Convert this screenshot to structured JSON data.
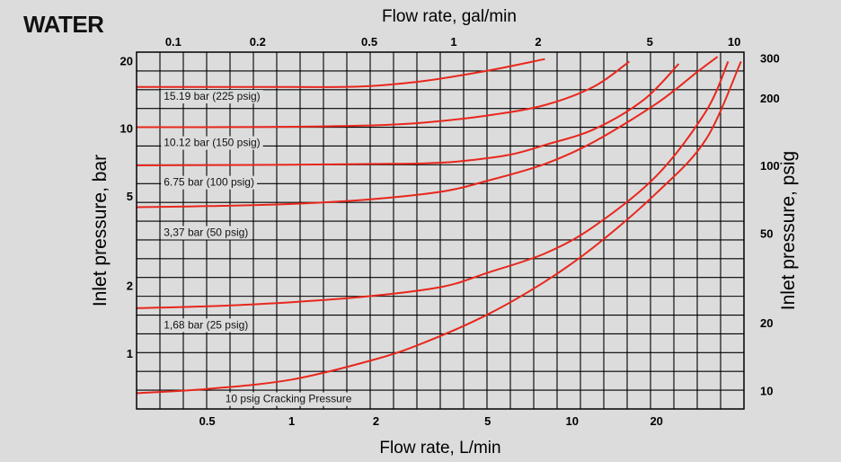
{
  "page_title": "WATER",
  "colors": {
    "background": "#dcdcdc",
    "grid": "#000000",
    "curve": "#e8271d"
  },
  "chart_data": {
    "type": "line",
    "title": "WATER",
    "xlabel": "Flow rate, L/min",
    "x2label": "Flow rate, gal/min",
    "ylabel": "Inlet pressure, bar",
    "y2label": "Inlet pressure, psig",
    "x_scale": "log",
    "y_scale": "log",
    "xlim": [
      0.28,
      41
    ],
    "ylim": [
      0.57,
      22
    ],
    "grid": true,
    "x_ticks": [
      {
        "value": 0.5,
        "label": "0.5"
      },
      {
        "value": 1,
        "label": "1"
      },
      {
        "value": 2,
        "label": "2"
      },
      {
        "value": 5,
        "label": "5"
      },
      {
        "value": 10,
        "label": "10"
      },
      {
        "value": 20,
        "label": "20"
      }
    ],
    "x2_ticks": [
      {
        "value": 0.1,
        "label": "0.1"
      },
      {
        "value": 0.2,
        "label": "0.2"
      },
      {
        "value": 0.5,
        "label": "0.5"
      },
      {
        "value": 1,
        "label": "1"
      },
      {
        "value": 2,
        "label": "2"
      },
      {
        "value": 5,
        "label": "5"
      },
      {
        "value": 10,
        "label": "10"
      }
    ],
    "y_ticks": [
      {
        "value": 1,
        "label": "1"
      },
      {
        "value": 2,
        "label": "2"
      },
      {
        "value": 5,
        "label": "5"
      },
      {
        "value": 10,
        "label": "10"
      },
      {
        "value": 20,
        "label": "20"
      }
    ],
    "y2_ticks": [
      {
        "value": 10,
        "label": "10"
      },
      {
        "value": 20,
        "label": "20"
      },
      {
        "value": 50,
        "label": "50"
      },
      {
        "value": 100,
        "label": "100"
      },
      {
        "value": 200,
        "label": "200"
      },
      {
        "value": 300,
        "label": "300"
      }
    ],
    "series": [
      {
        "name": "10 psig Cracking Pressure",
        "x": [
          0.28,
          0.5,
          1,
          2,
          3,
          5,
          8,
          12,
          20,
          30,
          40
        ],
        "y": [
          0.67,
          0.7,
          0.77,
          0.95,
          1.13,
          1.5,
          2.1,
          3.0,
          5.2,
          9.0,
          20
        ]
      },
      {
        "name": "1,68 bar (25 psig)",
        "x": [
          0.28,
          0.5,
          1,
          2,
          3.5,
          5,
          8,
          12,
          20,
          30,
          36
        ],
        "y": [
          1.6,
          1.63,
          1.7,
          1.82,
          2.0,
          2.3,
          2.8,
          3.7,
          6.2,
          12,
          20
        ]
      },
      {
        "name": "3,37 bar (50 psig)",
        "x": [
          0.28,
          0.5,
          1,
          2,
          3.5,
          5,
          8,
          12,
          20,
          28,
          33
        ],
        "y": [
          4.5,
          4.55,
          4.65,
          4.9,
          5.3,
          5.9,
          7.0,
          8.8,
          13,
          18,
          21
        ]
      },
      {
        "name": "6.75 bar (100 psig)",
        "x": [
          0.28,
          1,
          2,
          3,
          4,
          6,
          8,
          12,
          18,
          24
        ],
        "y": [
          6.9,
          6.95,
          7.0,
          7.05,
          7.2,
          7.7,
          8.5,
          10,
          13.5,
          19.5
        ]
      },
      {
        "name": "10.12 bar (150 psig)",
        "x": [
          0.28,
          0.5,
          1,
          2,
          3,
          5,
          8,
          12,
          16
        ],
        "y": [
          10.2,
          10.2,
          10.25,
          10.4,
          10.7,
          11.5,
          12.8,
          15.5,
          20
        ]
      },
      {
        "name": "15.19 bar (225 psig)",
        "x": [
          0.28,
          0.5,
          1,
          1.5,
          2,
          3,
          5,
          8
        ],
        "y": [
          15.4,
          15.4,
          15.4,
          15.4,
          15.6,
          16.4,
          18.2,
          20.5
        ]
      }
    ],
    "annotations": [
      {
        "text": "15.19 bar (225 psig)",
        "x": 0.35,
        "y": 13.5
      },
      {
        "text": "10.12 bar (150 psig)",
        "x": 0.35,
        "y": 8.4
      },
      {
        "text": "6.75 bar (100 psig)",
        "x": 0.35,
        "y": 5.6
      },
      {
        "text": "3,37 bar (50 psig)",
        "x": 0.35,
        "y": 3.35
      },
      {
        "text": "1,68 bar (25 psig)",
        "x": 0.35,
        "y": 1.3
      },
      {
        "text": "10 psig Cracking Pressure",
        "x": 0.58,
        "y": 0.61
      }
    ]
  }
}
